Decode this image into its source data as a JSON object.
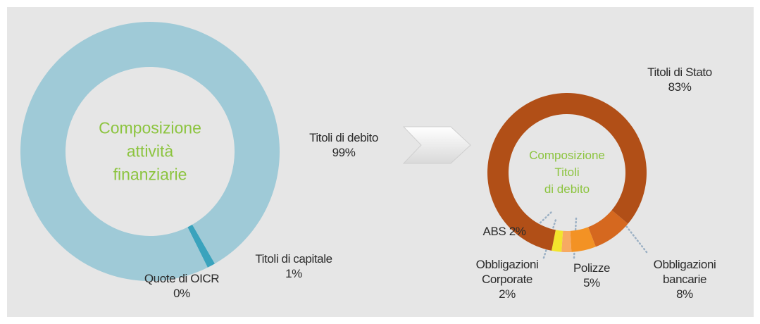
{
  "chart_data": [
    {
      "type": "donut",
      "title_lines": [
        "Composizione",
        "attività",
        "finanziarie"
      ],
      "categories": [
        "Titoli di capitale",
        "Quote di OICR",
        "Titoli di debito"
      ],
      "values": [
        1,
        0,
        99
      ],
      "value_labels": [
        "1%",
        "0%",
        "99%"
      ],
      "colors": [
        "#3aa3bd",
        "#2f7f99",
        "#9fcad7"
      ]
    },
    {
      "type": "donut",
      "title_lines": [
        "Composizione",
        "Titoli",
        "di debito"
      ],
      "categories": [
        "Obbligazioni\nbancarie",
        "Polizze",
        "Obbligazioni\nCorporate",
        "ABS",
        "Titoli di Stato"
      ],
      "values": [
        8,
        5,
        2,
        2,
        83
      ],
      "value_labels": [
        "8%",
        "5%",
        "2%",
        "2%",
        "83%"
      ],
      "colors": [
        "#d5681f",
        "#f39224",
        "#f7aa62",
        "#f3e42c",
        "#b14f17"
      ]
    }
  ]
}
